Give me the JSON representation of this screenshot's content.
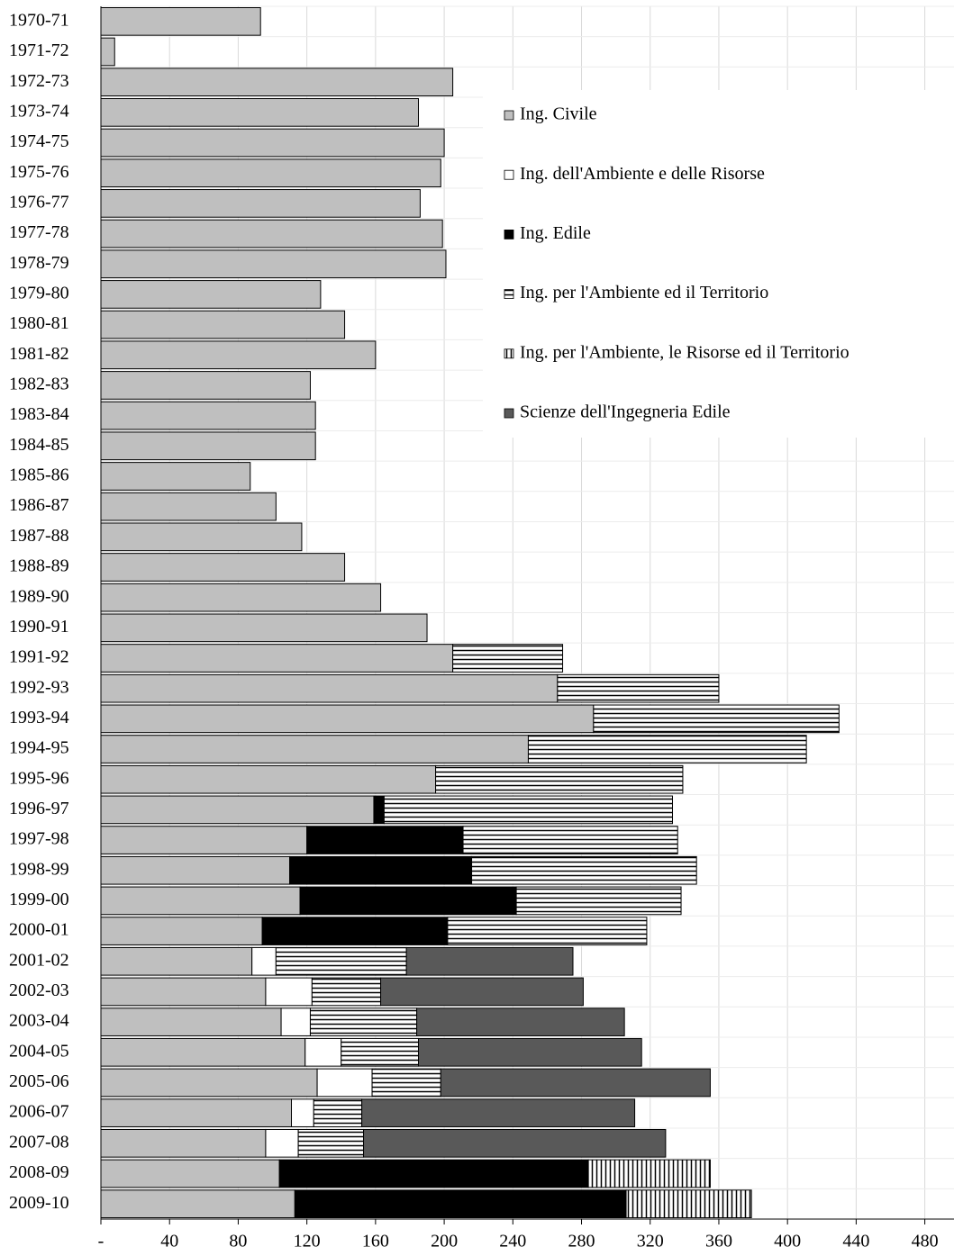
{
  "chart_data": {
    "type": "stacked-barh",
    "categories": [
      "1970-71",
      "1971-72",
      "1972-73",
      "1973-74",
      "1974-75",
      "1975-76",
      "1976-77",
      "1977-78",
      "1978-79",
      "1979-80",
      "1980-81",
      "1981-82",
      "1982-83",
      "1983-84",
      "1984-85",
      "1985-86",
      "1986-87",
      "1987-88",
      "1988-89",
      "1989-90",
      "1990-91",
      "1991-92",
      "1992-93",
      "1993-94",
      "1994-95",
      "1995-96",
      "1996-97",
      "1997-98",
      "1998-99",
      "1999-00",
      "2000-01",
      "2001-02",
      "2002-03",
      "2003-04",
      "2004-05",
      "2005-06",
      "2006-07",
      "2007-08",
      "2008-09",
      "2009-10"
    ],
    "series": [
      {
        "name": "Ing. Civile",
        "color": "#bfbfbf",
        "pattern": "solid",
        "values": [
          93,
          8,
          205,
          185,
          200,
          198,
          186,
          199,
          201,
          128,
          142,
          160,
          122,
          125,
          125,
          87,
          102,
          117,
          142,
          163,
          190,
          205,
          266,
          287,
          249,
          195,
          159,
          120,
          110,
          116,
          94,
          88,
          96,
          105,
          119,
          126,
          111,
          96,
          104,
          113
        ]
      },
      {
        "name": "Ing. dell'Ambiente e delle Risorse",
        "color": "#ffffff",
        "pattern": "solid",
        "values": [
          null,
          null,
          null,
          null,
          null,
          null,
          null,
          null,
          null,
          null,
          null,
          null,
          null,
          null,
          null,
          null,
          null,
          null,
          null,
          null,
          null,
          null,
          null,
          null,
          null,
          null,
          null,
          null,
          null,
          null,
          null,
          14,
          27,
          17,
          21,
          32,
          13,
          19,
          null,
          null
        ]
      },
      {
        "name": "Ing. Edile",
        "color": "#000000",
        "pattern": "solid",
        "values": [
          null,
          null,
          null,
          null,
          null,
          null,
          null,
          null,
          null,
          null,
          null,
          null,
          null,
          null,
          null,
          null,
          null,
          null,
          null,
          null,
          null,
          null,
          null,
          null,
          null,
          null,
          6,
          91,
          106,
          126,
          108,
          null,
          null,
          null,
          null,
          null,
          null,
          null,
          180,
          193
        ]
      },
      {
        "name": "Ing. per l'Ambiente ed il Territorio",
        "color": "#000000",
        "pattern": "horizontal",
        "values": [
          null,
          null,
          null,
          null,
          null,
          null,
          null,
          null,
          null,
          null,
          null,
          null,
          null,
          null,
          null,
          null,
          null,
          null,
          null,
          null,
          null,
          64,
          94,
          143,
          162,
          144,
          168,
          125,
          131,
          96,
          116,
          76,
          40,
          62,
          45,
          40,
          28,
          38,
          null,
          null
        ]
      },
      {
        "name": "Ing. per l'Ambiente, le Risorse ed il Territorio",
        "color": "#000000",
        "pattern": "vertical",
        "values": [
          null,
          null,
          null,
          null,
          null,
          null,
          null,
          null,
          null,
          null,
          null,
          null,
          null,
          null,
          null,
          null,
          null,
          null,
          null,
          null,
          null,
          null,
          null,
          null,
          null,
          null,
          null,
          null,
          null,
          null,
          null,
          null,
          null,
          null,
          null,
          null,
          null,
          null,
          71,
          73
        ]
      },
      {
        "name": "Scienze dell'Ingegneria Edile",
        "color": "#595959",
        "pattern": "solid",
        "values": [
          null,
          null,
          null,
          null,
          null,
          null,
          null,
          null,
          null,
          null,
          null,
          null,
          null,
          null,
          null,
          null,
          null,
          null,
          null,
          null,
          null,
          null,
          null,
          null,
          null,
          null,
          null,
          null,
          null,
          null,
          null,
          97,
          118,
          121,
          130,
          157,
          159,
          176,
          null,
          null
        ]
      }
    ],
    "xlim": [
      0,
      497
    ],
    "xticks": [
      {
        "value": 0,
        "label": "-"
      },
      40,
      80,
      120,
      160,
      200,
      240,
      280,
      320,
      360,
      400,
      440,
      480
    ],
    "grid": true,
    "legend": "upper right"
  }
}
